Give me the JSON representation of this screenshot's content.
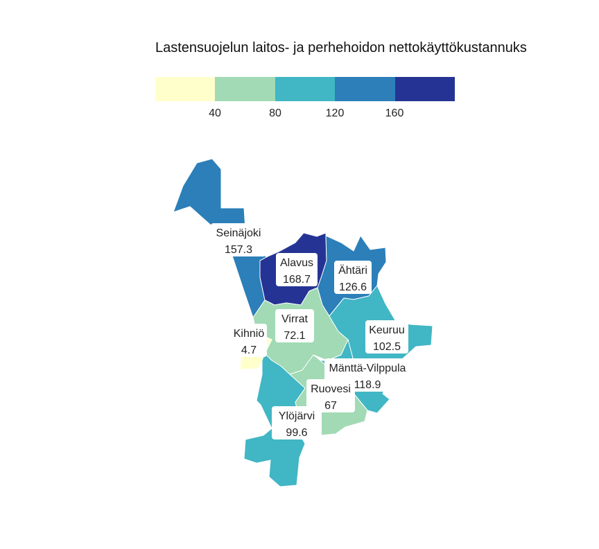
{
  "title": "Lastensuojelun laitos- ja perhehoidon nettokäyttökustannuks",
  "legend": {
    "colors": [
      "#ffffcc",
      "#a1dab4",
      "#41b6c4",
      "#2c7fb8",
      "#253494"
    ],
    "ticks": [
      "40",
      "80",
      "120",
      "160"
    ]
  },
  "regions": [
    {
      "name": "Seinäjoki",
      "value": "157.3",
      "color": "#2c7fb8"
    },
    {
      "name": "Alavus",
      "value": "168.7",
      "color": "#253494"
    },
    {
      "name": "Ähtäri",
      "value": "126.6",
      "color": "#2c7fb8"
    },
    {
      "name": "Virrat",
      "value": "72.1",
      "color": "#a1dab4"
    },
    {
      "name": "Kihniö",
      "value": "4.7",
      "color": "#ffffcc"
    },
    {
      "name": "Keuruu",
      "value": "102.5",
      "color": "#41b6c4"
    },
    {
      "name": "Mänttä-Vilppula",
      "value": "118.9",
      "color": "#41b6c4"
    },
    {
      "name": "Ruovesi",
      "value": "67",
      "color": "#a1dab4"
    },
    {
      "name": "Ylöjärvi",
      "value": "99.6",
      "color": "#41b6c4"
    }
  ]
}
